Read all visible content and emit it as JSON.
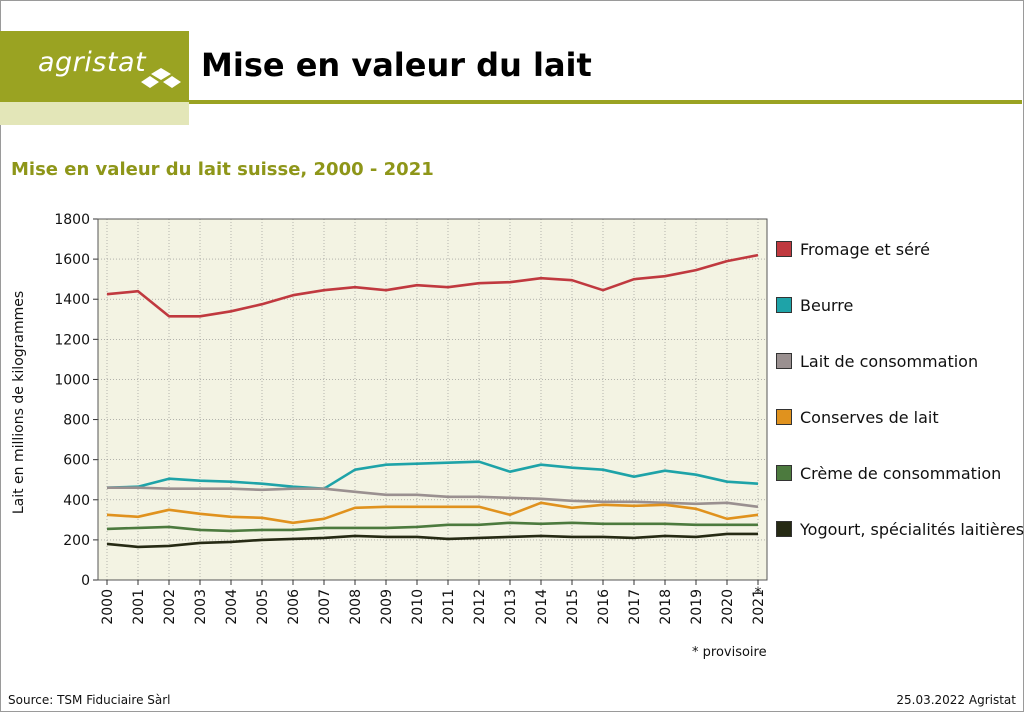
{
  "header": {
    "logo_text": "agristat",
    "title": "Mise en valeur du lait"
  },
  "chart_data": {
    "type": "line",
    "title": "Mise en valeur du lait suisse, 2000 - 2021",
    "ylabel": "Lait en millions de kilogrammes",
    "xlabel": "",
    "ylim": [
      0,
      1800
    ],
    "yticks": [
      0,
      200,
      400,
      600,
      800,
      1000,
      1200,
      1400,
      1600,
      1800
    ],
    "grid": true,
    "legend_position": "right",
    "plot_background": "#f3f3e3",
    "categories": [
      "2000",
      "2001",
      "2002",
      "2003",
      "2004",
      "2005",
      "2006",
      "2007",
      "2008",
      "2009",
      "2010",
      "2011",
      "2012",
      "2013",
      "2014",
      "2015",
      "2016",
      "2017",
      "2018",
      "2019",
      "2020",
      "2021"
    ],
    "x_marker": "*",
    "series": [
      {
        "name": "Fromage et séré",
        "color": "#c0393f",
        "values": [
          1425,
          1440,
          1315,
          1315,
          1340,
          1375,
          1420,
          1445,
          1460,
          1445,
          1470,
          1460,
          1480,
          1485,
          1505,
          1495,
          1445,
          1500,
          1515,
          1545,
          1590,
          1620
        ]
      },
      {
        "name": "Beurre",
        "color": "#1ea3a8",
        "values": [
          460,
          465,
          505,
          495,
          490,
          480,
          465,
          455,
          550,
          575,
          580,
          585,
          590,
          540,
          575,
          560,
          550,
          515,
          545,
          525,
          490,
          480
        ]
      },
      {
        "name": "Lait de consommation",
        "color": "#9a9090",
        "values": [
          460,
          460,
          455,
          455,
          455,
          450,
          455,
          455,
          440,
          425,
          425,
          415,
          415,
          410,
          405,
          395,
          390,
          390,
          385,
          380,
          385,
          365
        ]
      },
      {
        "name": "Conserves de lait",
        "color": "#e0921e",
        "values": [
          325,
          315,
          350,
          330,
          315,
          310,
          285,
          305,
          360,
          365,
          365,
          365,
          365,
          325,
          385,
          360,
          375,
          370,
          375,
          355,
          305,
          325
        ]
      },
      {
        "name": "Crème de consommation",
        "color": "#4c7a3e",
        "values": [
          255,
          260,
          265,
          250,
          245,
          250,
          250,
          260,
          260,
          260,
          265,
          275,
          275,
          285,
          280,
          285,
          280,
          280,
          280,
          275,
          275,
          275
        ]
      },
      {
        "name": "Yogourt, spécialités laitières",
        "color": "#262a14",
        "values": [
          180,
          165,
          170,
          185,
          190,
          200,
          205,
          210,
          220,
          215,
          215,
          205,
          210,
          215,
          220,
          215,
          215,
          210,
          220,
          215,
          230,
          230
        ]
      }
    ]
  },
  "footnote": "* provisoire",
  "footer": {
    "source": "Source: TSM Fiduciaire Sàrl",
    "date_credit": "25.03.2022 Agristat"
  }
}
